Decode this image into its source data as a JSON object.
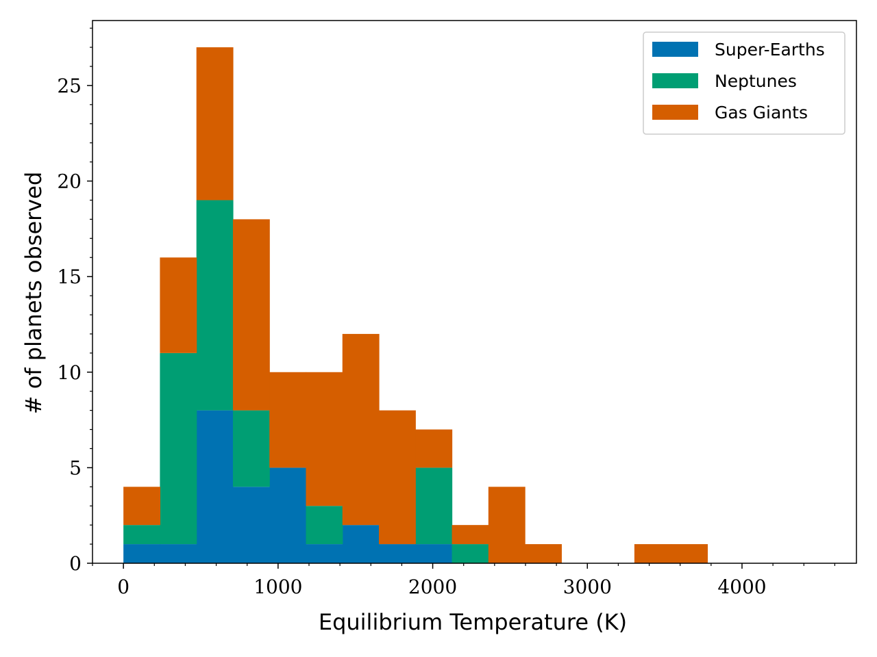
{
  "chart_data": {
    "type": "bar",
    "stacked": true,
    "histogram": true,
    "xlabel": "Equilibrium Temperature (K)",
    "ylabel": "# of planets observed",
    "xlim": [
      -200,
      4740
    ],
    "ylim": [
      0,
      28.4
    ],
    "xticks": [
      0,
      1000,
      2000,
      3000,
      4000
    ],
    "xtick_labels": [
      "0",
      "1000",
      "2000",
      "3000",
      "4000"
    ],
    "yticks": [
      0,
      5,
      10,
      15,
      20,
      25
    ],
    "ytick_labels": [
      "0",
      "5",
      "10",
      "15",
      "20",
      "25"
    ],
    "bin_edges": [
      0,
      236,
      472,
      708,
      944,
      1180,
      1416,
      1652,
      1888,
      2124,
      2360,
      2596,
      2832,
      3068,
      3304,
      3540,
      3776
    ],
    "legend_position": "top-right",
    "grid": false,
    "series": [
      {
        "name": "Super-Earths",
        "color": "#0072b2",
        "values": [
          1,
          1,
          8,
          4,
          5,
          1,
          2,
          1,
          1,
          0,
          0,
          0,
          0,
          0,
          0,
          0
        ]
      },
      {
        "name": "Neptunes",
        "color": "#009e73",
        "values": [
          1,
          10,
          11,
          4,
          0,
          2,
          0,
          0,
          4,
          1,
          0,
          0,
          0,
          0,
          0,
          0
        ]
      },
      {
        "name": "Gas Giants",
        "color": "#d55e00",
        "values": [
          2,
          5,
          8,
          10,
          5,
          7,
          10,
          7,
          2,
          1,
          4,
          1,
          0,
          0,
          1,
          1
        ]
      }
    ]
  }
}
